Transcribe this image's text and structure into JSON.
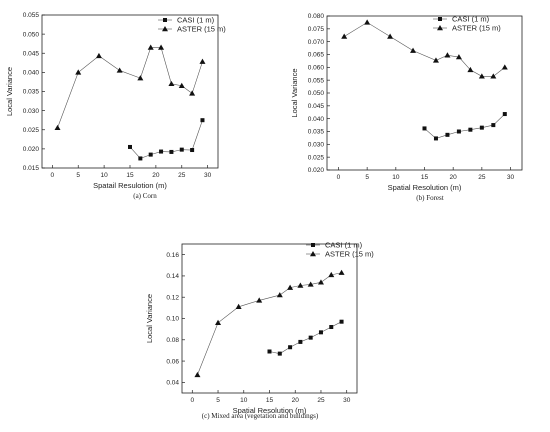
{
  "chart_data": [
    {
      "type": "line",
      "caption": "(a) Corn",
      "xlabel": "Spatail Resulotion (m)",
      "ylabel": "Local Variance",
      "xlim": [
        -2,
        32
      ],
      "ylim": [
        0.015,
        0.055
      ],
      "xticks": [
        "0",
        "5",
        "10",
        "15",
        "20",
        "25",
        "30"
      ],
      "yticks": [
        "0.015",
        "0.020",
        "0.025",
        "0.030",
        "0.035",
        "0.040",
        "0.045",
        "0.050",
        "0.055"
      ],
      "legend_position": "top-right",
      "series": [
        {
          "name": "CASI (1 m)",
          "marker": "square",
          "x": [
            15,
            17,
            19,
            21,
            23,
            25,
            27,
            29
          ],
          "y": [
            0.0205,
            0.0175,
            0.0185,
            0.0193,
            0.0192,
            0.0198,
            0.0197,
            0.0275
          ]
        },
        {
          "name": "ASTER (15 m)",
          "marker": "triangle",
          "x": [
            1,
            5,
            9,
            13,
            17,
            19,
            21,
            23,
            25,
            27,
            29
          ],
          "y": [
            0.0255,
            0.04,
            0.0443,
            0.0405,
            0.0385,
            0.0465,
            0.0465,
            0.037,
            0.0365,
            0.0345,
            0.0428
          ]
        }
      ]
    },
    {
      "type": "line",
      "caption": "(b) Forest",
      "xlabel": "Spatial Resolution (m)",
      "ylabel": "Local Variance",
      "xlim": [
        -2,
        32
      ],
      "ylim": [
        0.02,
        0.08
      ],
      "xticks": [
        "0",
        "5",
        "10",
        "15",
        "20",
        "25",
        "30"
      ],
      "yticks": [
        "0.020",
        "0.025",
        "0.030",
        "0.035",
        "0.040",
        "0.045",
        "0.050",
        "0.055",
        "0.060",
        "0.065",
        "0.070",
        "0.075",
        "0.080"
      ],
      "legend_position": "top-right",
      "series": [
        {
          "name": "CASI (1 m)",
          "marker": "square",
          "x": [
            15,
            17,
            19,
            21,
            23,
            25,
            27,
            29
          ],
          "y": [
            0.0362,
            0.0323,
            0.0337,
            0.035,
            0.0357,
            0.0365,
            0.0375,
            0.0418
          ]
        },
        {
          "name": "ASTER (15 m)",
          "marker": "triangle",
          "x": [
            1,
            5,
            9,
            13,
            17,
            19,
            21,
            23,
            25,
            27,
            29
          ],
          "y": [
            0.072,
            0.0775,
            0.072,
            0.0665,
            0.0627,
            0.0647,
            0.064,
            0.059,
            0.0565,
            0.0565,
            0.06
          ]
        }
      ]
    },
    {
      "type": "line",
      "caption": "(c) Mixed area (vegetation and buildings)",
      "xlabel": "Spatial Resolution (m)",
      "ylabel": "Local Variance",
      "xlim": [
        -2,
        32
      ],
      "ylim": [
        0.03,
        0.17
      ],
      "xticks": [
        "0",
        "5",
        "10",
        "15",
        "20",
        "25",
        "30"
      ],
      "yticks": [
        "0.04",
        "0.06",
        "0.08",
        "0.10",
        "0.12",
        "0.14",
        "0.16"
      ],
      "legend_position": "top-right",
      "series": [
        {
          "name": "CASI (1 m)",
          "marker": "square",
          "x": [
            15,
            17,
            19,
            21,
            23,
            25,
            27,
            29
          ],
          "y": [
            0.069,
            0.067,
            0.073,
            0.078,
            0.082,
            0.087,
            0.092,
            0.097
          ]
        },
        {
          "name": "ASTER (15 m)",
          "marker": "triangle",
          "x": [
            1,
            5,
            9,
            13,
            17,
            19,
            21,
            23,
            25,
            27,
            29
          ],
          "y": [
            0.047,
            0.096,
            0.111,
            0.117,
            0.122,
            0.129,
            0.131,
            0.132,
            0.134,
            0.141,
            0.143
          ]
        }
      ]
    }
  ]
}
